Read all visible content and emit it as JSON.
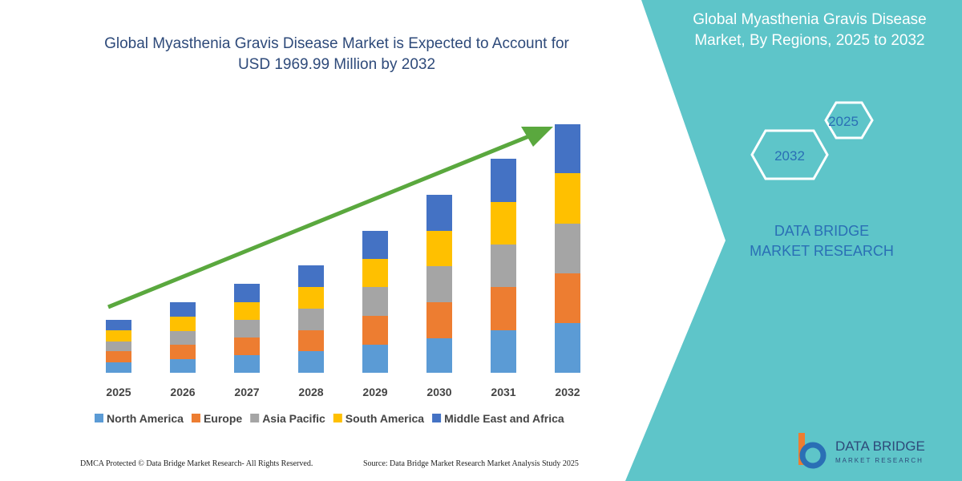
{
  "chart_data": {
    "type": "stacked-bar",
    "title": "Global Myasthenia Gravis Disease Market is Expected to Account for USD 1969.99 Million by 2032",
    "categories": [
      "2025",
      "2026",
      "2027",
      "2028",
      "2029",
      "2030",
      "2031",
      "2032"
    ],
    "series": [
      {
        "name": "North America",
        "color": "#5b9bd5",
        "values": [
          13,
          17,
          22,
          27,
          35,
          43,
          53,
          62
        ]
      },
      {
        "name": "Europe",
        "color": "#ed7d31",
        "values": [
          14,
          18,
          22,
          26,
          36,
          45,
          54,
          62
        ]
      },
      {
        "name": "Asia Pacific",
        "color": "#a5a5a5",
        "values": [
          12,
          17,
          22,
          27,
          36,
          45,
          53,
          62
        ]
      },
      {
        "name": "South America",
        "color": "#ffc000",
        "values": [
          14,
          18,
          22,
          27,
          35,
          44,
          53,
          63
        ]
      },
      {
        "name": "Middle East and Africa",
        "color": "#4472c4",
        "values": [
          13,
          18,
          23,
          27,
          35,
          45,
          54,
          61
        ]
      }
    ],
    "ylim": [
      0,
      320
    ],
    "legend": "bottom"
  },
  "side_panel": {
    "title": "Global Myasthenia Gravis Disease Market, By Regions, 2025 to 2032",
    "hexagons": [
      "2025",
      "2032"
    ],
    "brand": "DATA BRIDGE MARKET RESEARCH"
  },
  "logo": {
    "name": "DATA BRIDGE",
    "tagline": "MARKET RESEARCH"
  },
  "footer": {
    "left": "DMCA Protected © Data Bridge Market Research- All Rights Reserved.",
    "right": "Source: Data Bridge Market Research Market Analysis Study 2025"
  }
}
